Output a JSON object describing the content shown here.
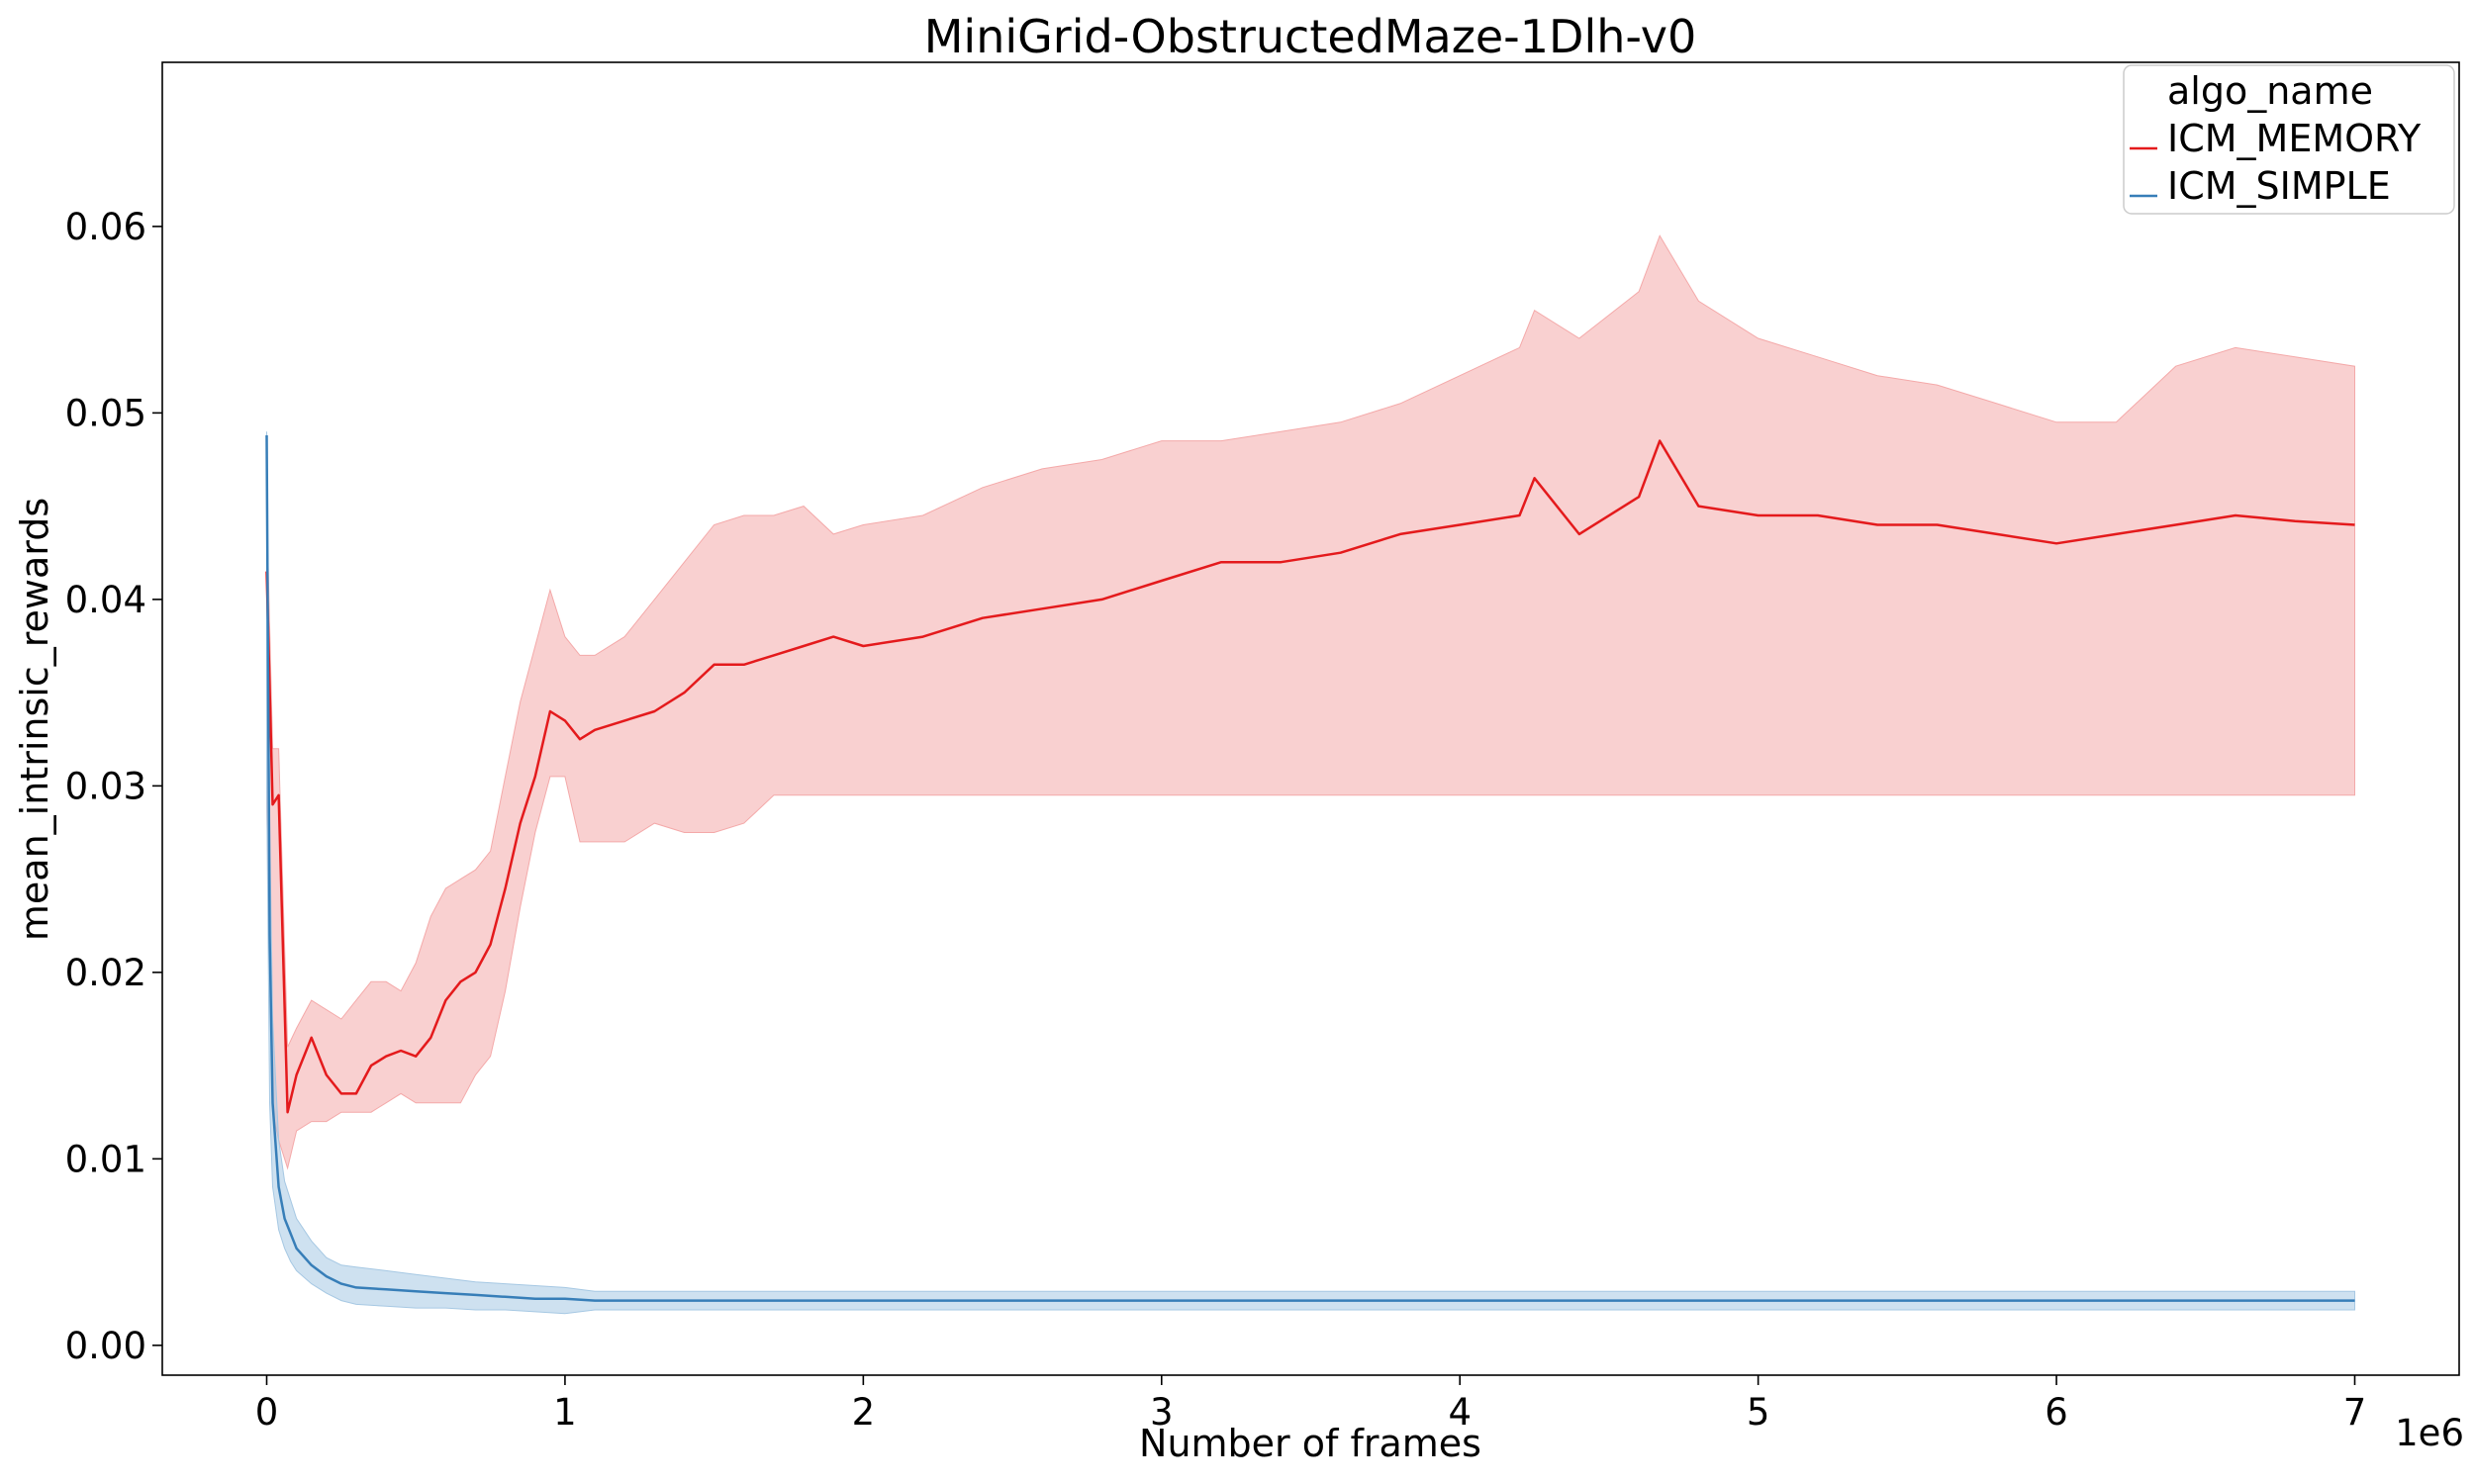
{
  "chart_data": {
    "type": "line",
    "title": "MiniGrid-ObstructedMaze-1Dlh-v0",
    "xlabel": "Number of frames",
    "ylabel": "mean_intrinsic_rewards",
    "x_offset_label": "1e6",
    "xlim": [
      -0.35,
      7.35
    ],
    "ylim": [
      -0.0016,
      0.0688
    ],
    "x_unit_multiplier": 1000000,
    "xticks": [
      0,
      1,
      2,
      3,
      4,
      5,
      6,
      7
    ],
    "xtick_labels": [
      "0",
      "1",
      "2",
      "3",
      "4",
      "5",
      "6",
      "7"
    ],
    "yticks": [
      0.0,
      0.01,
      0.02,
      0.03,
      0.04,
      0.05,
      0.06
    ],
    "ytick_labels": [
      "0.00",
      "0.01",
      "0.02",
      "0.03",
      "0.04",
      "0.05",
      "0.06"
    ],
    "grid": false,
    "legend": {
      "title": "algo_name",
      "placement": "top-right"
    },
    "series": [
      {
        "name": "ICM_MEMORY",
        "color": "#e41a1c",
        "band_color": "#f4a9a9",
        "x": [
          0.0,
          0.02,
          0.04,
          0.07,
          0.1,
          0.15,
          0.2,
          0.25,
          0.3,
          0.35,
          0.4,
          0.45,
          0.5,
          0.55,
          0.6,
          0.65,
          0.7,
          0.75,
          0.8,
          0.85,
          0.9,
          0.95,
          1.0,
          1.05,
          1.1,
          1.2,
          1.3,
          1.4,
          1.5,
          1.6,
          1.7,
          1.8,
          1.9,
          2.0,
          2.2,
          2.4,
          2.6,
          2.8,
          3.0,
          3.2,
          3.4,
          3.6,
          3.8,
          4.0,
          4.2,
          4.25,
          4.4,
          4.6,
          4.67,
          4.8,
          5.0,
          5.2,
          5.4,
          5.6,
          5.8,
          6.0,
          6.2,
          6.4,
          6.6,
          6.8,
          7.0
        ],
        "mean": [
          0.0415,
          0.029,
          0.0295,
          0.0125,
          0.0145,
          0.0165,
          0.0145,
          0.0135,
          0.0135,
          0.015,
          0.0155,
          0.0158,
          0.0155,
          0.0165,
          0.0185,
          0.0195,
          0.02,
          0.0215,
          0.0245,
          0.028,
          0.0305,
          0.034,
          0.0335,
          0.0325,
          0.033,
          0.0335,
          0.034,
          0.035,
          0.0365,
          0.0365,
          0.037,
          0.0375,
          0.038,
          0.0375,
          0.038,
          0.039,
          0.0395,
          0.04,
          0.041,
          0.042,
          0.042,
          0.0425,
          0.0435,
          0.044,
          0.0445,
          0.0465,
          0.0435,
          0.0455,
          0.0485,
          0.045,
          0.0445,
          0.0445,
          0.044,
          0.044,
          0.0435,
          0.043,
          0.0435,
          0.044,
          0.0445,
          0.0442,
          0.044
        ],
        "lower": [
          0.029,
          0.0125,
          0.011,
          0.0095,
          0.0115,
          0.012,
          0.012,
          0.0125,
          0.0125,
          0.0125,
          0.013,
          0.0135,
          0.013,
          0.013,
          0.013,
          0.013,
          0.0145,
          0.0155,
          0.019,
          0.0235,
          0.0275,
          0.0305,
          0.0305,
          0.027,
          0.027,
          0.027,
          0.028,
          0.0275,
          0.0275,
          0.028,
          0.0295,
          0.0295,
          0.0295,
          0.0295,
          0.0295,
          0.0295,
          0.0295,
          0.0295,
          0.0295,
          0.0295,
          0.0295,
          0.0295,
          0.0295,
          0.0295,
          0.0295,
          0.0295,
          0.0295,
          0.0295,
          0.0295,
          0.0295,
          0.0295,
          0.0295,
          0.0295,
          0.0295,
          0.0295,
          0.0295,
          0.0295,
          0.0295,
          0.0295,
          0.0295,
          0.0295
        ],
        "upper": [
          0.045,
          0.032,
          0.032,
          0.016,
          0.017,
          0.0185,
          0.018,
          0.0175,
          0.0185,
          0.0195,
          0.0195,
          0.019,
          0.0205,
          0.023,
          0.0245,
          0.025,
          0.0255,
          0.0265,
          0.0305,
          0.0345,
          0.0375,
          0.0405,
          0.038,
          0.037,
          0.037,
          0.038,
          0.04,
          0.042,
          0.044,
          0.0445,
          0.0445,
          0.045,
          0.0435,
          0.044,
          0.0445,
          0.046,
          0.047,
          0.0475,
          0.0485,
          0.0485,
          0.049,
          0.0495,
          0.0505,
          0.052,
          0.0535,
          0.0555,
          0.054,
          0.0565,
          0.0595,
          0.056,
          0.054,
          0.053,
          0.052,
          0.0515,
          0.0505,
          0.0495,
          0.0495,
          0.0525,
          0.0535,
          0.053,
          0.0525
        ]
      },
      {
        "name": "ICM_SIMPLE",
        "color": "#377eb8",
        "band_color": "#a6c8e3",
        "x": [
          0.0,
          0.01,
          0.02,
          0.04,
          0.06,
          0.08,
          0.1,
          0.15,
          0.2,
          0.25,
          0.3,
          0.4,
          0.5,
          0.6,
          0.7,
          0.8,
          0.9,
          1.0,
          1.1,
          1.5,
          2.0,
          3.0,
          4.0,
          5.0,
          6.0,
          7.0
        ],
        "mean": [
          0.0488,
          0.022,
          0.013,
          0.0085,
          0.0068,
          0.006,
          0.0052,
          0.0043,
          0.0037,
          0.0033,
          0.0031,
          0.003,
          0.0029,
          0.0028,
          0.0027,
          0.0026,
          0.0025,
          0.0025,
          0.0024,
          0.0024,
          0.0024,
          0.0024,
          0.0024,
          0.0024,
          0.0024,
          0.0024
        ],
        "lower": [
          0.03,
          0.013,
          0.0085,
          0.0062,
          0.0052,
          0.0045,
          0.004,
          0.0033,
          0.0028,
          0.0024,
          0.0022,
          0.0021,
          0.002,
          0.002,
          0.0019,
          0.0019,
          0.0018,
          0.0017,
          0.0019,
          0.0019,
          0.0019,
          0.0019,
          0.0019,
          0.0019,
          0.0019,
          0.0019
        ],
        "upper": [
          0.049,
          0.028,
          0.0175,
          0.011,
          0.0088,
          0.0078,
          0.0068,
          0.0056,
          0.0047,
          0.0043,
          0.0042,
          0.004,
          0.0038,
          0.0036,
          0.0034,
          0.0033,
          0.0032,
          0.0031,
          0.0029,
          0.0029,
          0.0029,
          0.0029,
          0.0029,
          0.0029,
          0.0029,
          0.0029
        ]
      }
    ]
  }
}
